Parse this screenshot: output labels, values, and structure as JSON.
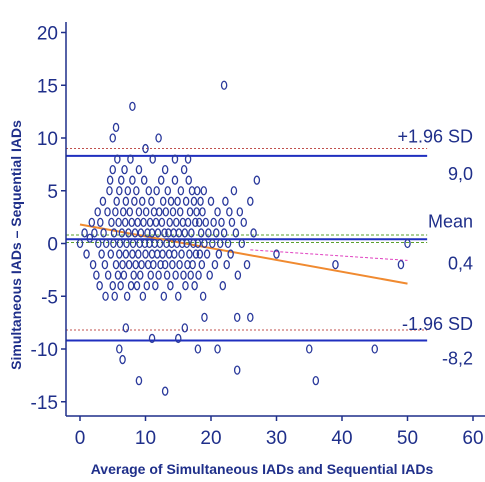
{
  "chart_data": {
    "type": "scatter",
    "title": "",
    "xlabel": "Average of Simultaneous IADs and Sequential IADs",
    "ylabel": "Simultaneous IADs – Sequential IADs",
    "xlim": [
      -2,
      62
    ],
    "ylim": [
      -16,
      21
    ],
    "x_ticks": [
      0,
      10,
      20,
      30,
      40,
      50,
      60
    ],
    "y_ticks": [
      -15,
      -10,
      -5,
      0,
      5,
      10,
      15,
      20
    ],
    "grid": false,
    "mean": 0.4,
    "upper_loa": 8.3,
    "lower_loa": -9.2,
    "annotations": {
      "upper_label": "+1.96 SD",
      "upper_value": "9,0",
      "mean_label": "Mean",
      "mean_value": "0,4",
      "lower_label": "-1.96 SD",
      "lower_value": "-8,2"
    },
    "colors": {
      "points": "#2b3a9c",
      "limit_lines": "#1f2fbf",
      "reference_dashed": "#c0504d",
      "regression": "#f08a30",
      "regression_ci": "#e040c0",
      "mean_ci": "#5aa02c",
      "axes": "#1f2f8a"
    },
    "lines": {
      "regression": {
        "x": [
          0,
          50
        ],
        "y": [
          1.8,
          -3.8
        ]
      },
      "regression_ci": {
        "x": [
          26,
          50
        ],
        "y": [
          -0.6,
          -1.6
        ]
      },
      "mean_ci_upper": 0.8,
      "mean_ci_lower": 0.1,
      "ref_upper": 9.0,
      "ref_lower": -8.2,
      "line_x_end": 53
    },
    "points": [
      [
        0,
        0
      ],
      [
        0.7,
        1
      ],
      [
        1,
        -1
      ],
      [
        1.5,
        0.5
      ],
      [
        1.8,
        2
      ],
      [
        2,
        -2
      ],
      [
        2.2,
        1
      ],
      [
        2.5,
        -3
      ],
      [
        2.7,
        3
      ],
      [
        2.8,
        0
      ],
      [
        3,
        -4
      ],
      [
        3.1,
        2
      ],
      [
        3.3,
        -1
      ],
      [
        3.5,
        4
      ],
      [
        3.6,
        1
      ],
      [
        3.8,
        -2
      ],
      [
        3.9,
        -5
      ],
      [
        4,
        0
      ],
      [
        4.2,
        3
      ],
      [
        4.3,
        -3
      ],
      [
        4.5,
        5
      ],
      [
        4.6,
        6
      ],
      [
        4.7,
        -1
      ],
      [
        4.8,
        2
      ],
      [
        5,
        -4
      ],
      [
        5,
        7
      ],
      [
        5.1,
        0
      ],
      [
        5.2,
        1
      ],
      [
        5.3,
        -5
      ],
      [
        5.4,
        3
      ],
      [
        5.5,
        -2
      ],
      [
        5.6,
        4
      ],
      [
        5.7,
        8
      ],
      [
        5.8,
        -3
      ],
      [
        5.9,
        2
      ],
      [
        6,
        -1
      ],
      [
        6,
        5
      ],
      [
        6.1,
        0
      ],
      [
        6.2,
        -4
      ],
      [
        6.3,
        6
      ],
      [
        6.4,
        1
      ],
      [
        6.5,
        -2
      ],
      [
        6.6,
        3
      ],
      [
        6.7,
        -3
      ],
      [
        6.8,
        7
      ],
      [
        6.9,
        2
      ],
      [
        7,
        -1
      ],
      [
        7,
        4
      ],
      [
        7.1,
        0
      ],
      [
        7.2,
        -5
      ],
      [
        7.3,
        5
      ],
      [
        7.4,
        1
      ],
      [
        7.5,
        -2
      ],
      [
        7.6,
        3
      ],
      [
        7.7,
        8
      ],
      [
        7.8,
        -4
      ],
      [
        7.9,
        2
      ],
      [
        8,
        -1
      ],
      [
        8,
        6
      ],
      [
        8.1,
        0
      ],
      [
        8.2,
        -3
      ],
      [
        8.3,
        4
      ],
      [
        8.4,
        1
      ],
      [
        8.5,
        -2
      ],
      [
        8.6,
        5
      ],
      [
        8.7,
        -4
      ],
      [
        8.8,
        2
      ],
      [
        8.9,
        -1
      ],
      [
        9,
        3
      ],
      [
        9,
        7
      ],
      [
        9.1,
        0
      ],
      [
        9.2,
        -3
      ],
      [
        9.3,
        1
      ],
      [
        9.4,
        -2
      ],
      [
        9.5,
        4
      ],
      [
        9.6,
        -5
      ],
      [
        9.7,
        2
      ],
      [
        9.8,
        6
      ],
      [
        9.9,
        0
      ],
      [
        10,
        -1
      ],
      [
        10.1,
        3
      ],
      [
        10.2,
        -4
      ],
      [
        10.3,
        1
      ],
      [
        10.4,
        -2
      ],
      [
        10.5,
        5
      ],
      [
        10.6,
        0
      ],
      [
        10.7,
        2
      ],
      [
        10.8,
        -3
      ],
      [
        10.9,
        4
      ],
      [
        11,
        -1
      ],
      [
        11,
        1
      ],
      [
        11.1,
        8
      ],
      [
        11.2,
        -2
      ],
      [
        11.3,
        3
      ],
      [
        11.4,
        0
      ],
      [
        11.5,
        -4
      ],
      [
        11.6,
        2
      ],
      [
        11.7,
        5
      ],
      [
        11.8,
        -1
      ],
      [
        11.9,
        1
      ],
      [
        12,
        -3
      ],
      [
        12.1,
        3
      ],
      [
        12.2,
        0
      ],
      [
        12.3,
        -2
      ],
      [
        12.4,
        6
      ],
      [
        12.5,
        2
      ],
      [
        12.6,
        -1
      ],
      [
        12.7,
        4
      ],
      [
        12.8,
        -5
      ],
      [
        12.9,
        1
      ],
      [
        13,
        -2
      ],
      [
        13,
        7
      ],
      [
        13.1,
        3
      ],
      [
        13.2,
        0
      ],
      [
        13.3,
        -3
      ],
      [
        13.4,
        5
      ],
      [
        13.5,
        1
      ],
      [
        13.6,
        -1
      ],
      [
        13.7,
        2
      ],
      [
        13.8,
        -4
      ],
      [
        13.9,
        4
      ],
      [
        14,
        0
      ],
      [
        14.1,
        -2
      ],
      [
        14.2,
        3
      ],
      [
        14.3,
        1
      ],
      [
        14.4,
        -1
      ],
      [
        14.5,
        6
      ],
      [
        14.6,
        -3
      ],
      [
        14.7,
        2
      ],
      [
        14.8,
        0
      ],
      [
        14.9,
        4
      ],
      [
        15,
        -5
      ],
      [
        15.1,
        1
      ],
      [
        15.2,
        -2
      ],
      [
        15.3,
        3
      ],
      [
        15.4,
        5
      ],
      [
        15.5,
        -1
      ],
      [
        15.6,
        0
      ],
      [
        15.7,
        2
      ],
      [
        15.8,
        -3
      ],
      [
        15.9,
        7
      ],
      [
        16,
        1
      ],
      [
        16.1,
        -4
      ],
      [
        16.2,
        4
      ],
      [
        16.3,
        0
      ],
      [
        16.4,
        -2
      ],
      [
        16.5,
        2
      ],
      [
        16.6,
        6
      ],
      [
        16.7,
        -1
      ],
      [
        16.8,
        3
      ],
      [
        16.9,
        -3
      ],
      [
        17,
        1
      ],
      [
        17.1,
        5
      ],
      [
        17.2,
        -2
      ],
      [
        17.3,
        0
      ],
      [
        17.4,
        4
      ],
      [
        17.5,
        -4
      ],
      [
        17.6,
        2
      ],
      [
        17.7,
        -1
      ],
      [
        17.8,
        3
      ],
      [
        17.9,
        5
      ],
      [
        18,
        0
      ],
      [
        18.1,
        -3
      ],
      [
        18.2,
        2
      ],
      [
        18.3,
        -1
      ],
      [
        18.4,
        4
      ],
      [
        18.5,
        1
      ],
      [
        18.6,
        -2
      ],
      [
        18.7,
        3
      ],
      [
        18.8,
        -5
      ],
      [
        18.9,
        5
      ],
      [
        19,
        0
      ],
      [
        19.2,
        2
      ],
      [
        19.4,
        -1
      ],
      [
        19.6,
        1
      ],
      [
        19.8,
        -3
      ],
      [
        20,
        4
      ],
      [
        20.2,
        0
      ],
      [
        20.4,
        2
      ],
      [
        20.6,
        -2
      ],
      [
        20.8,
        1
      ],
      [
        21,
        3
      ],
      [
        21.2,
        -1
      ],
      [
        21.4,
        0
      ],
      [
        21.6,
        2
      ],
      [
        21.8,
        -4
      ],
      [
        22,
        1
      ],
      [
        22.2,
        4
      ],
      [
        22.4,
        -2
      ],
      [
        22.6,
        0
      ],
      [
        22.8,
        3
      ],
      [
        23,
        -1
      ],
      [
        23.2,
        2
      ],
      [
        23.5,
        5
      ],
      [
        23.8,
        1
      ],
      [
        24.1,
        -3
      ],
      [
        24.4,
        3
      ],
      [
        24.7,
        0
      ],
      [
        25,
        2
      ],
      [
        25.5,
        -2
      ],
      [
        26,
        4
      ],
      [
        26.5,
        1
      ],
      [
        27,
        6
      ],
      [
        6,
        -10
      ],
      [
        6.5,
        -11
      ],
      [
        7,
        -8
      ],
      [
        9,
        -13
      ],
      [
        11,
        -9
      ],
      [
        13,
        -14
      ],
      [
        15,
        -9
      ],
      [
        16,
        -8
      ],
      [
        18,
        -10
      ],
      [
        19,
        -7
      ],
      [
        21,
        -10
      ],
      [
        24,
        -12
      ],
      [
        24,
        -7
      ],
      [
        26,
        -7
      ],
      [
        30,
        -1
      ],
      [
        35,
        -10
      ],
      [
        36,
        -13
      ],
      [
        39,
        -2
      ],
      [
        45,
        -10
      ],
      [
        49,
        -2
      ],
      [
        50,
        0
      ],
      [
        5,
        10
      ],
      [
        5.5,
        11
      ],
      [
        8,
        13
      ],
      [
        10,
        9
      ],
      [
        12,
        10
      ],
      [
        22,
        15
      ],
      [
        14.5,
        8
      ],
      [
        16.5,
        8
      ]
    ]
  }
}
